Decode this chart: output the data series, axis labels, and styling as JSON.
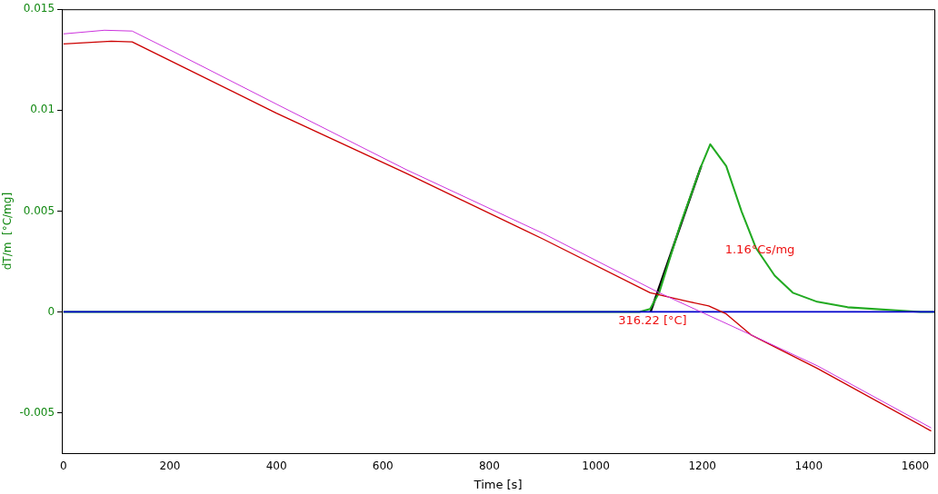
{
  "chart_data": {
    "type": "line",
    "xlabel": "Time [s]",
    "ylabel": "dT/m  [°C/mg]",
    "xlim": [
      -3,
      1636
    ],
    "xticks": [
      0,
      200,
      400,
      600,
      800,
      1000,
      1200,
      1400,
      1600
    ],
    "ylim": [
      -0.007,
      0.015
    ],
    "yticks": [
      -0.005,
      0,
      0.005,
      0.01,
      0.015
    ],
    "grid": false,
    "legend": false,
    "marker": "none",
    "line_style": "solid",
    "series": [
      {
        "color": "#cc33dd",
        "x": [
          0,
          77,
          129,
          199,
          400,
          644,
          901,
          1119,
          1291,
          1416,
          1630
        ],
        "values": [
          0.01378,
          0.01396,
          0.01392,
          0.013,
          0.0103,
          0.00705,
          0.00389,
          0.00095,
          -0.00113,
          -0.00267,
          -0.00575
        ]
      },
      {
        "color": "#cc0000",
        "x": [
          0,
          90,
          129,
          199,
          400,
          644,
          901,
          1102,
          1176,
          1212,
          1245,
          1291,
          1416,
          1630
        ],
        "values": [
          0.01328,
          0.01342,
          0.01338,
          0.01247,
          0.00985,
          0.00687,
          0.00361,
          0.00095,
          0.0005,
          0.0003,
          -0.0001,
          -0.00113,
          -0.0028,
          -0.0059
        ]
      },
      {
        "color": "#0000cc",
        "x": [
          0,
          1636
        ],
        "values": [
          0,
          0
        ]
      },
      {
        "color": "#22aa22",
        "x": [
          0,
          1082,
          1102,
          1119,
          1159,
          1198,
          1215,
          1245,
          1274,
          1301,
          1336,
          1370,
          1416,
          1473,
          1610,
          1636
        ],
        "values": [
          0,
          0,
          0.00014,
          0.00095,
          0.00434,
          0.00723,
          0.00831,
          0.00723,
          0.00497,
          0.00316,
          0.0018,
          0.00095,
          0.0005,
          0.00023,
          0,
          0
        ]
      },
      {
        "color": "#000000",
        "x": [
          1103,
          1198
        ],
        "values": [
          0,
          0.00723
        ]
      }
    ],
    "annotations": [
      "316.22 [°C]",
      "1.16°Cs/mg"
    ]
  }
}
